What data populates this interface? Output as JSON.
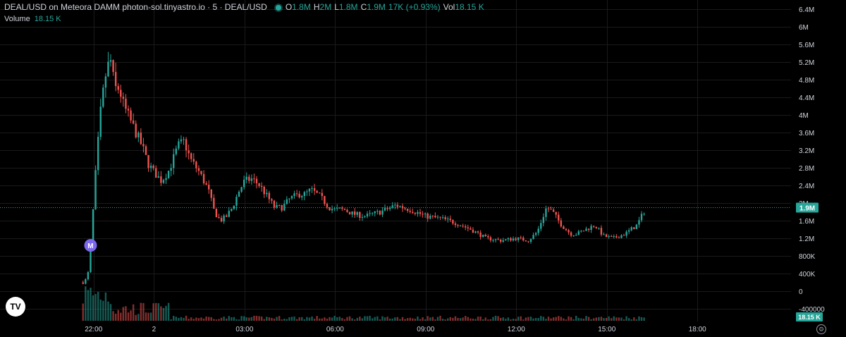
{
  "legend": {
    "title": "DEAL/USD on Meteora DAMM photon-sol.tinyastro.io · 5 · DEAL/USD",
    "open_label": "O",
    "open": "1.8M",
    "high_label": "H",
    "high": "2M",
    "low_label": "L",
    "low": "1.8M",
    "close_label": "C",
    "close": "1.9M",
    "change": "17K (+0.93%)",
    "vol_label": "Vol",
    "vol": "18.15 K"
  },
  "volume_legend": {
    "label": "Volume",
    "value": "18.15 K"
  },
  "logo_text": "TV",
  "marker_text": "M",
  "price_badge": "1.9M",
  "volume_badge": "18.15 K",
  "settings_icon": "gear-icon",
  "colors": {
    "up": "#26a69a",
    "down": "#ef5350",
    "grid": "#1a1a1a",
    "marker": "#7b68ee",
    "axis_text": "#d1d4dc"
  },
  "chart_data": {
    "type": "candlestick",
    "y_ticks": [
      "6.4M",
      "6M",
      "5.6M",
      "5.2M",
      "4.8M",
      "4.4M",
      "4M",
      "3.6M",
      "3.2M",
      "2.8M",
      "2.4M",
      "2M",
      "1.6M",
      "1.2M",
      "800K",
      "400K",
      "0",
      "-400000"
    ],
    "y_tick_values": [
      6400000,
      6000000,
      5600000,
      5200000,
      4800000,
      4400000,
      4000000,
      3600000,
      3200000,
      2800000,
      2400000,
      2000000,
      1600000,
      1200000,
      800000,
      400000,
      0,
      -400000
    ],
    "x_ticks": [
      "22:00",
      "2",
      "03:00",
      "06:00",
      "09:00",
      "12:00",
      "15:00",
      "18:00"
    ],
    "x_tick_hours": [
      22,
      24,
      27,
      30,
      33,
      36,
      39,
      42
    ],
    "x_range_hours": [
      18.9,
      45.1
    ],
    "y_range": [
      -450000,
      6550000
    ],
    "last_price": 1900000,
    "marker_hour": 21.9,
    "marker_price": 1040000,
    "price_path": [
      [
        21.65,
        200000
      ],
      [
        21.8,
        300000
      ],
      [
        21.9,
        1000000
      ],
      [
        22.0,
        2000000
      ],
      [
        22.1,
        3000000
      ],
      [
        22.25,
        4200000
      ],
      [
        22.4,
        4900000
      ],
      [
        22.55,
        5300000
      ],
      [
        22.7,
        4600000
      ],
      [
        22.85,
        4600000
      ],
      [
        23.0,
        4200000
      ],
      [
        23.2,
        3900000
      ],
      [
        23.4,
        3600000
      ],
      [
        23.6,
        3300000
      ],
      [
        23.8,
        2900000
      ],
      [
        24.0,
        2700000
      ],
      [
        24.25,
        2500000
      ],
      [
        24.5,
        2750000
      ],
      [
        24.8,
        3300000
      ],
      [
        25.0,
        3400000
      ],
      [
        25.2,
        3000000
      ],
      [
        25.5,
        2700000
      ],
      [
        25.8,
        2300000
      ],
      [
        26.0,
        1800000
      ],
      [
        26.2,
        1600000
      ],
      [
        26.4,
        1700000
      ],
      [
        26.6,
        1900000
      ],
      [
        26.8,
        2250000
      ],
      [
        27.0,
        2500000
      ],
      [
        27.25,
        2550000
      ],
      [
        27.5,
        2400000
      ],
      [
        27.75,
        2150000
      ],
      [
        28.0,
        1900000
      ],
      [
        28.25,
        1900000
      ],
      [
        28.5,
        2100000
      ],
      [
        28.8,
        2200000
      ],
      [
        29.0,
        2200000
      ],
      [
        29.2,
        2300000
      ],
      [
        29.5,
        2150000
      ],
      [
        29.8,
        1900000
      ],
      [
        30.0,
        1850000
      ],
      [
        30.3,
        1850000
      ],
      [
        30.6,
        1750000
      ],
      [
        31.0,
        1700000
      ],
      [
        31.5,
        1800000
      ],
      [
        32.0,
        1950000
      ],
      [
        32.5,
        1850000
      ],
      [
        33.0,
        1700000
      ],
      [
        33.5,
        1650000
      ],
      [
        34.0,
        1550000
      ],
      [
        34.5,
        1400000
      ],
      [
        35.0,
        1200000
      ],
      [
        35.5,
        1150000
      ],
      [
        36.0,
        1200000
      ],
      [
        36.4,
        1150000
      ],
      [
        36.7,
        1350000
      ],
      [
        37.0,
        1900000
      ],
      [
        37.2,
        1800000
      ],
      [
        37.5,
        1500000
      ],
      [
        37.8,
        1300000
      ],
      [
        38.0,
        1300000
      ],
      [
        38.3,
        1400000
      ],
      [
        38.6,
        1500000
      ],
      [
        38.9,
        1250000
      ],
      [
        39.2,
        1200000
      ],
      [
        39.6,
        1300000
      ],
      [
        40.0,
        1500000
      ],
      [
        40.3,
        1900000
      ]
    ],
    "volume_max": 400000
  }
}
